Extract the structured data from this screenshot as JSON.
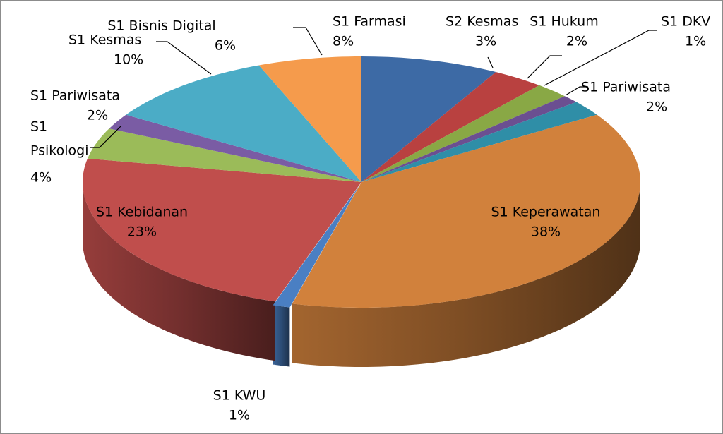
{
  "chart_data": {
    "type": "pie",
    "style": "3d-exploded-perspective",
    "legend": "none",
    "slices": [
      {
        "name": "S1 Farmasi",
        "percent_label": "8%",
        "value": 8,
        "color": "#3d6aa5"
      },
      {
        "name": "S2 Kesmas",
        "percent_label": "3%",
        "value": 3,
        "color": "#b94140"
      },
      {
        "name": "S1 Hukum",
        "percent_label": "2%",
        "value": 2,
        "color": "#89a845"
      },
      {
        "name": "S1 DKV",
        "percent_label": "1%",
        "value": 1,
        "color": "#6b4f91"
      },
      {
        "name": "S1 Pariwisata",
        "percent_label": "2%",
        "value": 2,
        "color": "#2f8ea7"
      },
      {
        "name": "S1 Keperawatan",
        "percent_label": "38%",
        "value": 38,
        "color": "#d1813c"
      },
      {
        "name": "S1 KWU",
        "percent_label": "1%",
        "value": 1,
        "color": "#4a7fc3"
      },
      {
        "name": "S1 Kebidanan",
        "percent_label": "23%",
        "value": 23,
        "color": "#c04e4c"
      },
      {
        "name": "S1 Psikologi",
        "percent_label": "4%",
        "value": 4,
        "color": "#9bbb59"
      },
      {
        "name": "S1 Pariwisata",
        "percent_label": "2%",
        "value": 2,
        "color": "#7a5ca4"
      },
      {
        "name": "S1 Kesmas",
        "percent_label": "10%",
        "value": 10,
        "color": "#4bacc6"
      },
      {
        "name": "S1 Bisnis Digital",
        "percent_label": "6%",
        "value": 6,
        "color": "#f59b4c"
      }
    ]
  }
}
